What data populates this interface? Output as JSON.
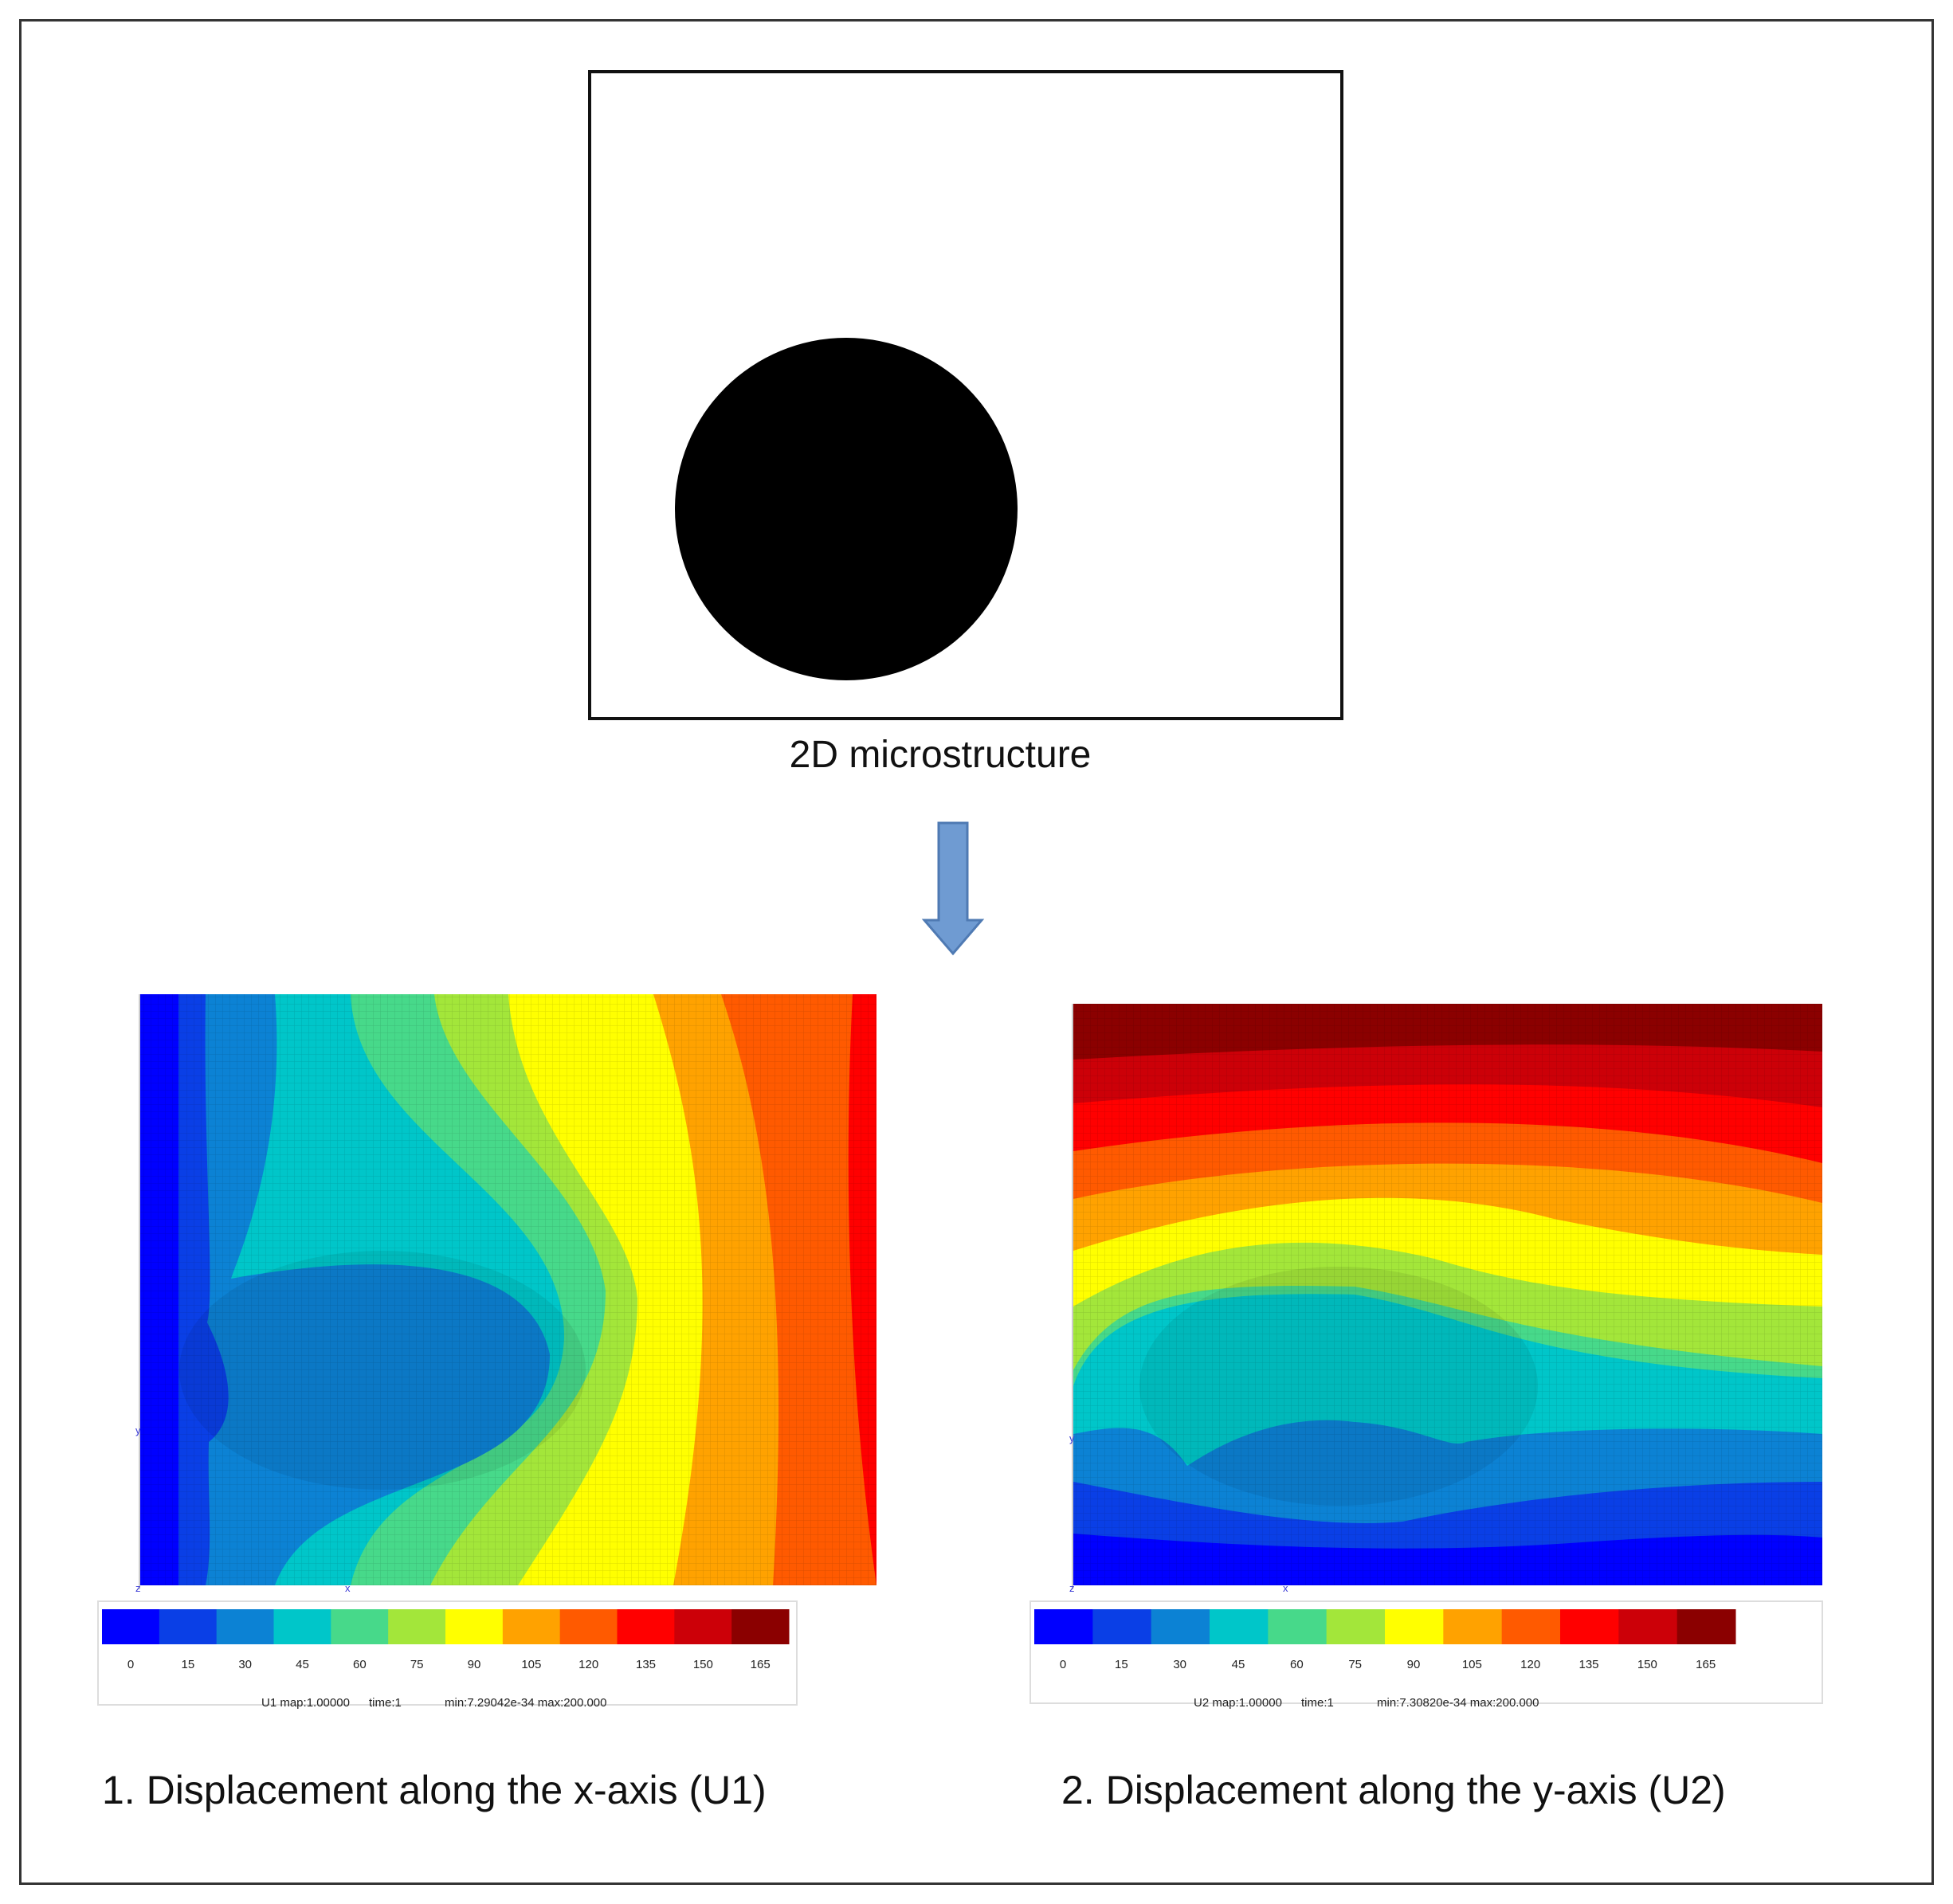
{
  "top_caption": "2D microstructure",
  "colors": {
    "arrow": "#6f9bd2",
    "arrow_stroke": "#4f7ab3",
    "inclusion": "#000000",
    "legend": [
      "#0000ff",
      "#0a3fe6",
      "#0c82d4",
      "#00c6c9",
      "#47d98a",
      "#a3e63a",
      "#ffff00",
      "#ffa200",
      "#ff5a00",
      "#ff0000",
      "#cc0008",
      "#8b0000"
    ]
  },
  "panels": [
    {
      "caption": "1. Displacement along the x-axis (U1)",
      "ticks": [
        "0",
        "15",
        "30",
        "45",
        "60",
        "75",
        "90",
        "105",
        "120",
        "135",
        "150",
        "165"
      ],
      "footer_var": "U1 map:1.00000",
      "footer_time": "time:1",
      "footer_range": "min:7.29042e-34 max:200.000",
      "axis_z": "z",
      "axis_x": "x",
      "axis_y": "y"
    },
    {
      "caption": "2. Displacement along the y-axis (U2)",
      "ticks": [
        "0",
        "15",
        "30",
        "45",
        "60",
        "75",
        "90",
        "105",
        "120",
        "135",
        "150",
        "165"
      ],
      "footer_var": "U2 map:1.00000",
      "footer_time": "time:1",
      "footer_range": "min:7.30820e-34 max:200.000",
      "axis_z": "z",
      "axis_x": "x",
      "axis_y": "y"
    }
  ]
}
